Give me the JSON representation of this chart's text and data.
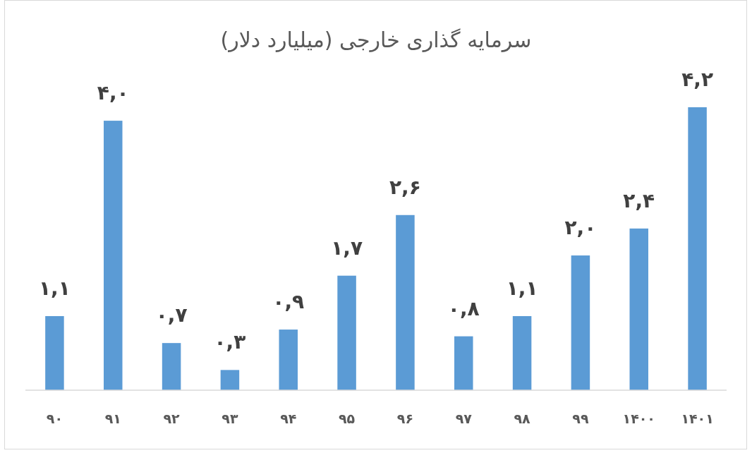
{
  "chart_data": {
    "type": "bar",
    "title": "سرمایه گذاری خارجی (میلیارد دلار)",
    "categories": [
      "۹۰",
      "۹۱",
      "۹۲",
      "۹۳",
      "۹۴",
      "۹۵",
      "۹۶",
      "۹۷",
      "۹۸",
      "۹۹",
      "۱۴۰۰",
      "۱۴۰۱"
    ],
    "values": [
      1.1,
      4.0,
      0.7,
      0.3,
      0.9,
      1.7,
      2.6,
      0.8,
      1.1,
      2.0,
      2.4,
      4.2
    ],
    "value_labels": [
      "۱,۱",
      "۴,۰",
      "۰,۷",
      "۰,۳",
      "۰,۹",
      "۱,۷",
      "۲,۶",
      "۰,۸",
      "۱,۱",
      "۲,۰",
      "۲,۴",
      "۴,۲"
    ],
    "color": "#5b9bd5"
  }
}
